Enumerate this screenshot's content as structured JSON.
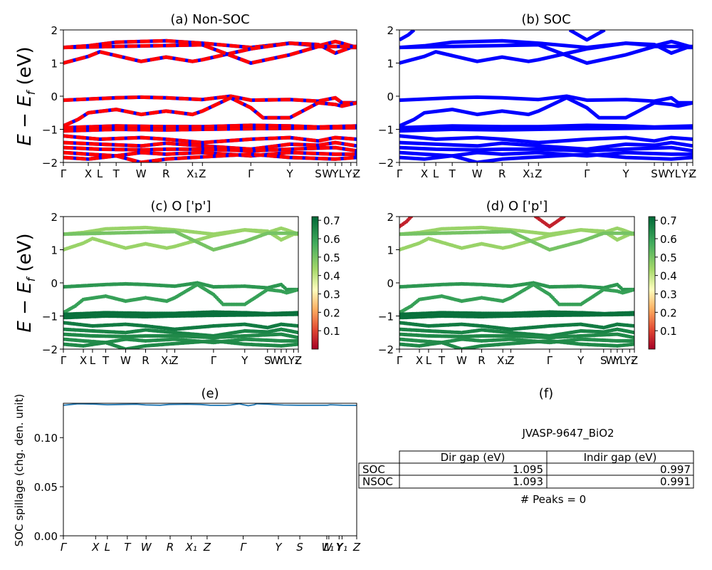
{
  "chart_data": [
    {
      "id": "a",
      "type": "line",
      "title": "(a) Non-SOC",
      "ylabel": "E − E_f (eV)",
      "ylim": [
        -2,
        2
      ],
      "yticks": [
        "2",
        "1",
        "0",
        "−1",
        "−2"
      ],
      "yticks_values": [
        2,
        1,
        0,
        -1,
        -2
      ],
      "kpath": [
        "Γ",
        "X",
        "L",
        "T",
        "W",
        "R",
        "X₁",
        "Z",
        "Γ",
        "Y",
        "S",
        "W",
        "Y",
        "L",
        "Y₁",
        "Z"
      ],
      "kpath_pos": [
        0,
        0.085,
        0.124,
        0.18,
        0.265,
        0.35,
        0.44,
        0.474,
        0.639,
        0.772,
        0.869,
        0.9,
        0.927,
        0.949,
        0.98,
        1.0
      ],
      "series_colors": [
        "#ff0000",
        "#0000ff"
      ],
      "style": "dashed red/blue overlay",
      "bands": [
        [
          [
            0,
            1.47
          ],
          [
            0.085,
            1.52
          ],
          [
            0.18,
            1.63
          ],
          [
            0.35,
            1.67
          ],
          [
            0.474,
            1.6
          ],
          [
            0.639,
            1.47
          ],
          [
            0.772,
            1.6
          ],
          [
            0.869,
            1.52
          ],
          [
            0.927,
            1.65
          ],
          [
            0.95,
            1.6
          ],
          [
            1.0,
            1.47
          ]
        ],
        [
          [
            0,
            1.0
          ],
          [
            0.085,
            1.2
          ],
          [
            0.124,
            1.34
          ],
          [
            0.265,
            1.05
          ],
          [
            0.35,
            1.18
          ],
          [
            0.44,
            1.05
          ],
          [
            0.474,
            1.1
          ],
          [
            0.639,
            1.43
          ],
          [
            0.772,
            1.6
          ],
          [
            0.869,
            1.56
          ],
          [
            0.927,
            1.3
          ],
          [
            0.98,
            1.47
          ],
          [
            1.0,
            1.47
          ]
        ],
        [
          [
            0,
            1.47
          ],
          [
            0.474,
            1.55
          ],
          [
            0.639,
            1.0
          ],
          [
            0.772,
            1.25
          ],
          [
            0.869,
            1.5
          ],
          [
            0.927,
            1.5
          ],
          [
            1.0,
            1.5
          ]
        ],
        [
          [
            0,
            -0.12
          ],
          [
            0.18,
            -0.05
          ],
          [
            0.265,
            -0.03
          ],
          [
            0.35,
            -0.05
          ],
          [
            0.474,
            -0.1
          ],
          [
            0.57,
            0.0
          ],
          [
            0.639,
            -0.12
          ],
          [
            0.772,
            -0.1
          ],
          [
            0.869,
            -0.15
          ],
          [
            0.927,
            -0.05
          ],
          [
            0.95,
            -0.2
          ],
          [
            1.0,
            -0.2
          ]
        ],
        [
          [
            0,
            -0.9
          ],
          [
            0.05,
            -0.7
          ],
          [
            0.085,
            -0.5
          ],
          [
            0.18,
            -0.4
          ],
          [
            0.265,
            -0.55
          ],
          [
            0.35,
            -0.45
          ],
          [
            0.44,
            -0.55
          ],
          [
            0.474,
            -0.45
          ],
          [
            0.57,
            -0.05
          ],
          [
            0.639,
            -0.35
          ],
          [
            0.68,
            -0.65
          ],
          [
            0.772,
            -0.65
          ],
          [
            0.869,
            -0.2
          ],
          [
            0.927,
            -0.25
          ],
          [
            0.95,
            -0.3
          ],
          [
            1.0,
            -0.2
          ]
        ],
        [
          [
            0,
            -0.95
          ],
          [
            0.18,
            -0.9
          ],
          [
            0.35,
            -0.92
          ],
          [
            0.474,
            -0.92
          ],
          [
            0.639,
            -0.88
          ],
          [
            0.772,
            -0.9
          ],
          [
            0.869,
            -0.93
          ],
          [
            1.0,
            -0.9
          ]
        ],
        [
          [
            0,
            -1.05
          ],
          [
            0.18,
            -1.0
          ],
          [
            0.35,
            -1.02
          ],
          [
            0.474,
            -1.0
          ],
          [
            0.639,
            -0.98
          ],
          [
            0.772,
            -0.97
          ],
          [
            1.0,
            -0.95
          ]
        ],
        [
          [
            0,
            -1.2
          ],
          [
            0.124,
            -1.3
          ],
          [
            0.265,
            -1.25
          ],
          [
            0.35,
            -1.3
          ],
          [
            0.474,
            -1.4
          ],
          [
            0.639,
            -1.3
          ],
          [
            0.772,
            -1.25
          ],
          [
            0.869,
            -1.35
          ],
          [
            0.927,
            -1.25
          ],
          [
            1.0,
            -1.3
          ]
        ],
        [
          [
            0,
            -1.4
          ],
          [
            0.124,
            -1.45
          ],
          [
            0.265,
            -1.5
          ],
          [
            0.35,
            -1.42
          ],
          [
            0.474,
            -1.5
          ],
          [
            0.639,
            -1.6
          ],
          [
            0.772,
            -1.45
          ],
          [
            0.869,
            -1.48
          ],
          [
            0.927,
            -1.4
          ],
          [
            1.0,
            -1.5
          ]
        ],
        [
          [
            0,
            -1.55
          ],
          [
            0.124,
            -1.6
          ],
          [
            0.265,
            -1.62
          ],
          [
            0.35,
            -1.6
          ],
          [
            0.474,
            -1.6
          ],
          [
            0.639,
            -1.65
          ],
          [
            0.772,
            -1.6
          ],
          [
            0.927,
            -1.55
          ],
          [
            1.0,
            -1.65
          ]
        ],
        [
          [
            0,
            -1.7
          ],
          [
            0.085,
            -1.75
          ],
          [
            0.18,
            -1.8
          ],
          [
            0.265,
            -1.7
          ],
          [
            0.35,
            -1.75
          ],
          [
            0.474,
            -1.7
          ],
          [
            0.639,
            -1.8
          ],
          [
            0.772,
            -1.7
          ],
          [
            0.927,
            -1.75
          ],
          [
            1.0,
            -1.75
          ]
        ],
        [
          [
            0,
            -1.85
          ],
          [
            0.085,
            -1.9
          ],
          [
            0.18,
            -1.8
          ],
          [
            0.265,
            -2.0
          ],
          [
            0.35,
            -1.9
          ],
          [
            0.44,
            -1.85
          ],
          [
            0.639,
            -1.75
          ],
          [
            0.772,
            -1.85
          ],
          [
            0.927,
            -1.9
          ],
          [
            1.0,
            -1.85
          ]
        ]
      ]
    },
    {
      "id": "b",
      "type": "line",
      "title": "(b) SOC",
      "ylim": [
        -2,
        2
      ],
      "yticks": [
        "2",
        "1",
        "0",
        "−1",
        "−2"
      ],
      "yticks_values": [
        2,
        1,
        0,
        -1,
        -2
      ],
      "kpath": [
        "Γ",
        "X",
        "L",
        "T",
        "W",
        "R",
        "X₁",
        "Z",
        "Γ",
        "Y",
        "S",
        "W",
        "Y",
        "L",
        "Y₁",
        "Z"
      ],
      "kpath_pos": [
        0,
        0.085,
        0.124,
        0.18,
        0.265,
        0.35,
        0.44,
        0.474,
        0.639,
        0.772,
        0.869,
        0.9,
        0.927,
        0.949,
        0.98,
        1.0
      ],
      "series_colors": [
        "#0000ff"
      ],
      "bands_same_as": "a",
      "extra_bands": [
        [
          [
            0,
            1.7
          ],
          [
            0.03,
            1.85
          ],
          [
            0.05,
            2.0
          ]
        ],
        [
          [
            0.58,
            2.0
          ],
          [
            0.639,
            1.7
          ],
          [
            0.7,
            2.0
          ]
        ]
      ]
    },
    {
      "id": "c",
      "type": "scatter",
      "title": "(c)  O ['p']",
      "ylabel": "E − E_f (eV)",
      "ylim": [
        -2,
        2
      ],
      "yticks": [
        "2",
        "1",
        "0",
        "−1",
        "−2"
      ],
      "yticks_values": [
        2,
        1,
        0,
        -1,
        -2
      ],
      "kpath": [
        "Γ",
        "X",
        "L",
        "T",
        "W",
        "R",
        "X₁",
        "Z",
        "Γ",
        "Y",
        "S",
        "W",
        "Y",
        "L",
        "Y₁",
        "Z"
      ],
      "colormap": "RdYlGn",
      "colorbar": {
        "ticks": [
          "0.7",
          "0.6",
          "0.5",
          "0.4",
          "0.3",
          "0.2",
          "0.1"
        ],
        "tick_values": [
          0.7,
          0.6,
          0.5,
          0.4,
          0.3,
          0.2,
          0.1
        ],
        "range": [
          0.0,
          0.72
        ]
      },
      "band_weights": [
        0.45,
        0.45,
        0.5,
        0.62,
        0.6,
        0.7,
        0.7,
        0.68,
        0.66,
        0.65,
        0.64,
        0.65
      ]
    },
    {
      "id": "d",
      "type": "scatter",
      "title": "(d) O ['p']",
      "ylim": [
        -2,
        2
      ],
      "yticks": [
        "2",
        "1",
        "0",
        "−1",
        "−2"
      ],
      "yticks_values": [
        2,
        1,
        0,
        -1,
        -2
      ],
      "kpath": [
        "Γ",
        "X",
        "L",
        "T",
        "W",
        "R",
        "X₁",
        "Z",
        "Γ",
        "Y",
        "S",
        "W",
        "Y",
        "L",
        "Y₁",
        "Z"
      ],
      "colormap": "RdYlGn",
      "colorbar": {
        "ticks": [
          "0.7",
          "0.6",
          "0.5",
          "0.4",
          "0.3",
          "0.2",
          "0.1"
        ],
        "tick_values": [
          0.7,
          0.6,
          0.5,
          0.4,
          0.3,
          0.2,
          0.1
        ],
        "range": [
          0.0,
          0.72
        ]
      },
      "extra_band_weight": 0.05
    },
    {
      "id": "e",
      "type": "line",
      "title": "(e)",
      "ylabel": "SOC spillage (chg. den. unit)",
      "ylim": [
        0.0,
        0.135
      ],
      "yticks": [
        "0.00",
        "0.05",
        "0.10"
      ],
      "yticks_values": [
        0.0,
        0.05,
        0.1
      ],
      "kpath": [
        "Γ",
        "X",
        "L",
        "T",
        "W",
        "R",
        "X₁",
        "Z",
        "Γ",
        "Y",
        "S",
        "W",
        "L₁",
        "Y",
        "Y₁",
        "Z"
      ],
      "kpath_pos": [
        0,
        0.11,
        0.15,
        0.218,
        0.282,
        0.364,
        0.436,
        0.49,
        0.613,
        0.733,
        0.806,
        0.898,
        0.905,
        0.94,
        0.95,
        1.0
      ],
      "color": "#1f77b4",
      "x": [
        0,
        0.05,
        0.1,
        0.15,
        0.2,
        0.25,
        0.28,
        0.33,
        0.36,
        0.42,
        0.47,
        0.5,
        0.55,
        0.57,
        0.6,
        0.61,
        0.63,
        0.65,
        0.66,
        0.7,
        0.75,
        0.8,
        0.85,
        0.9,
        0.91,
        0.95,
        1.0
      ],
      "values": [
        0.133,
        0.1345,
        0.1342,
        0.1335,
        0.1338,
        0.134,
        0.1333,
        0.133,
        0.1338,
        0.134,
        0.1337,
        0.133,
        0.1328,
        0.1332,
        0.1345,
        0.1338,
        0.1325,
        0.1335,
        0.1345,
        0.134,
        0.1332,
        0.133,
        0.133,
        0.133,
        0.1335,
        0.133,
        0.1328
      ]
    },
    {
      "id": "f",
      "type": "table",
      "title": "(f)",
      "subtitle": "JVASP-9647_BiO2",
      "columns": [
        "",
        "Dir gap (eV)",
        "Indir gap (eV)"
      ],
      "rows": [
        {
          "label": "SOC",
          "dir": "1.095",
          "indir": "0.997"
        },
        {
          "label": "NSOC",
          "dir": "1.093",
          "indir": "0.991"
        }
      ],
      "footer": "# Peaks = 0"
    }
  ]
}
